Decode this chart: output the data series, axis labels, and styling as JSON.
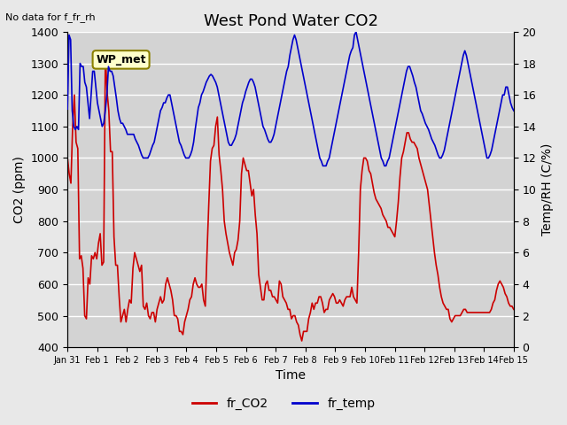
{
  "title": "West Pond Water CO2",
  "subtitle": "No data for f_fr_rh",
  "xlabel": "Time",
  "ylabel_left": "CO2 (ppm)",
  "ylabel_right": "Temp/RH (C/%)",
  "ylim_left": [
    400,
    1400
  ],
  "ylim_right": [
    0,
    20
  ],
  "background_color": "#e8e8e8",
  "plot_bg_color": "#d3d3d3",
  "grid_color": "#ffffff",
  "co2_color": "#cc0000",
  "temp_color": "#0000cc",
  "legend_label_co2": "fr_CO2",
  "legend_label_temp": "fr_temp",
  "box_label": "WP_met",
  "box_facecolor": "#ffffcc",
  "box_edgecolor": "#8B8000",
  "tick_labels": [
    "Jan 31",
    "Feb 1",
    "Feb 2",
    "Feb 3",
    "Feb 4",
    "Feb 5",
    "Feb 6",
    "Feb 7",
    "Feb 8",
    "Feb 9",
    "Feb 10",
    "Feb 11",
    "Feb 12",
    "Feb 13",
    "Feb 14",
    "Feb 15"
  ],
  "co2_data": [
    1000,
    950,
    920,
    1100,
    1200,
    1050,
    1030,
    680,
    690,
    650,
    500,
    490,
    620,
    600,
    690,
    680,
    700,
    680,
    730,
    760,
    660,
    670,
    1330,
    1210,
    1150,
    1020,
    1020,
    750,
    660,
    660,
    560,
    480,
    500,
    520,
    480,
    520,
    550,
    540,
    650,
    700,
    680,
    660,
    640,
    660,
    530,
    520,
    540,
    500,
    490,
    510,
    510,
    480,
    520,
    540,
    560,
    540,
    550,
    600,
    620,
    600,
    580,
    550,
    500,
    500,
    490,
    450,
    450,
    440,
    480,
    500,
    520,
    550,
    560,
    600,
    620,
    600,
    590,
    590,
    600,
    550,
    530,
    700,
    850,
    990,
    1030,
    1040,
    1100,
    1130,
    1010,
    960,
    900,
    800,
    760,
    730,
    700,
    680,
    660,
    700,
    710,
    740,
    800,
    950,
    1000,
    980,
    960,
    960,
    920,
    880,
    900,
    820,
    760,
    630,
    590,
    550,
    550,
    600,
    610,
    580,
    580,
    560,
    560,
    550,
    540,
    610,
    600,
    560,
    550,
    540,
    520,
    520,
    490,
    500,
    500,
    480,
    470,
    440,
    420,
    450,
    450,
    450,
    490,
    510,
    540,
    520,
    540,
    540,
    560,
    560,
    540,
    510,
    520,
    520,
    550,
    560,
    570,
    560,
    540,
    540,
    550,
    540,
    530,
    550,
    560,
    560,
    560,
    590,
    560,
    550,
    540,
    700,
    900,
    960,
    1000,
    1000,
    990,
    960,
    950,
    920,
    890,
    870,
    860,
    850,
    840,
    820,
    810,
    800,
    780,
    780,
    770,
    760,
    750,
    800,
    860,
    940,
    1000,
    1020,
    1050,
    1080,
    1080,
    1060,
    1050,
    1050,
    1040,
    1030,
    1000,
    980,
    960,
    940,
    920,
    900,
    850,
    800,
    750,
    700,
    660,
    630,
    590,
    560,
    540,
    530,
    520,
    520,
    490,
    480,
    490,
    500,
    500,
    500,
    500,
    510,
    520,
    520,
    510,
    510,
    510,
    510,
    510,
    510,
    510,
    510,
    510,
    510,
    510,
    510,
    510,
    510,
    520,
    540,
    550,
    580,
    600,
    610,
    600,
    590,
    570,
    560,
    540,
    530,
    530,
    520
  ],
  "temp_data": [
    15.1,
    19.8,
    19.5,
    15.0,
    14.0,
    13.8,
    14.0,
    13.8,
    18.0,
    17.8,
    17.8,
    16.8,
    16.5,
    15.5,
    14.5,
    16.0,
    17.5,
    17.5,
    16.5,
    15.5,
    15.0,
    14.5,
    14.0,
    14.2,
    15.0,
    16.0,
    17.8,
    17.5,
    17.5,
    17.2,
    16.5,
    15.8,
    15.0,
    14.5,
    14.2,
    14.2,
    14.0,
    13.8,
    13.5,
    13.5,
    13.5,
    13.5,
    13.5,
    13.2,
    13.0,
    12.8,
    12.5,
    12.2,
    12.0,
    12.0,
    12.0,
    12.0,
    12.2,
    12.5,
    12.8,
    13.0,
    13.5,
    14.0,
    14.5,
    15.0,
    15.2,
    15.5,
    15.5,
    15.8,
    16.0,
    16.0,
    15.5,
    15.0,
    14.5,
    14.0,
    13.5,
    13.0,
    12.8,
    12.5,
    12.2,
    12.0,
    12.0,
    12.0,
    12.2,
    12.5,
    13.0,
    13.8,
    14.5,
    15.2,
    15.5,
    16.0,
    16.2,
    16.5,
    16.8,
    17.0,
    17.2,
    17.3,
    17.2,
    17.0,
    16.8,
    16.5,
    16.0,
    15.5,
    15.0,
    14.5,
    14.0,
    13.5,
    13.0,
    12.8,
    12.8,
    13.0,
    13.2,
    13.5,
    14.0,
    14.5,
    15.0,
    15.5,
    15.8,
    16.2,
    16.5,
    16.8,
    17.0,
    17.0,
    16.8,
    16.5,
    16.0,
    15.5,
    15.0,
    14.5,
    14.0,
    13.8,
    13.5,
    13.2,
    13.0,
    13.0,
    13.2,
    13.5,
    14.0,
    14.5,
    15.0,
    15.5,
    16.0,
    16.5,
    17.0,
    17.5,
    17.8,
    18.5,
    19.0,
    19.5,
    19.8,
    19.5,
    19.0,
    18.5,
    18.0,
    17.5,
    17.0,
    16.5,
    16.0,
    15.5,
    15.0,
    14.5,
    14.0,
    13.5,
    13.0,
    12.5,
    12.0,
    11.8,
    11.5,
    11.5,
    11.5,
    11.8,
    12.0,
    12.5,
    13.0,
    13.5,
    14.0,
    14.5,
    15.0,
    15.5,
    16.0,
    16.5,
    17.0,
    17.5,
    18.0,
    18.5,
    18.8,
    19.0,
    19.8,
    20.0,
    19.5,
    19.0,
    18.5,
    18.0,
    17.5,
    17.0,
    16.5,
    16.0,
    15.5,
    15.0,
    14.5,
    14.0,
    13.5,
    13.0,
    12.5,
    12.0,
    11.8,
    11.5,
    11.5,
    11.8,
    12.0,
    12.5,
    13.0,
    13.5,
    14.0,
    14.5,
    15.0,
    15.5,
    16.0,
    16.5,
    17.0,
    17.5,
    17.8,
    17.8,
    17.5,
    17.2,
    16.8,
    16.5,
    16.0,
    15.5,
    15.0,
    14.8,
    14.5,
    14.2,
    14.0,
    13.8,
    13.5,
    13.2,
    13.0,
    12.8,
    12.5,
    12.2,
    12.0,
    12.0,
    12.2,
    12.5,
    13.0,
    13.5,
    14.0,
    14.5,
    15.0,
    15.5,
    16.0,
    16.5,
    17.0,
    17.5,
    18.0,
    18.5,
    18.8,
    18.5,
    18.0,
    17.5,
    17.0,
    16.5,
    16.0,
    15.5,
    15.0,
    14.5,
    14.0,
    13.5,
    13.0,
    12.5,
    12.0,
    12.0,
    12.2,
    12.5,
    13.0,
    13.5,
    14.0,
    14.5,
    15.0,
    15.5,
    16.0,
    16.0,
    16.5,
    16.5,
    16.0,
    15.5,
    15.2,
    15.0
  ]
}
